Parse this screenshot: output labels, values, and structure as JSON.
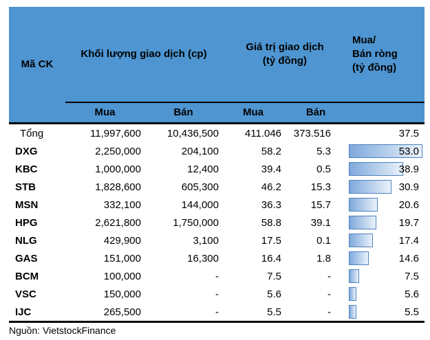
{
  "table": {
    "header": {
      "ticker": "Mã CK",
      "volume_group": "Khối lượng giao dịch (cp)",
      "value_group": "Giá trị giao dịch\n(tỷ đồng)",
      "net_group": "Mua/\nBán ròng\n(tỷ đồng)",
      "sub_volume_buy": "Mua",
      "sub_volume_sell": "Bán",
      "sub_value_buy": "Mua",
      "sub_value_sell": "Bán"
    },
    "net_bar_max": 53.0,
    "total_row": {
      "ticker": "Tổng",
      "volume_buy": "11,997,600",
      "volume_sell": "10,436,500",
      "value_buy": "411.046",
      "value_sell": "373.516",
      "net": "37.5",
      "net_value": 37.5,
      "show_bar": false
    },
    "rows": [
      {
        "ticker": "DXG",
        "volume_buy": "2,250,000",
        "volume_sell": "204,100",
        "value_buy": "58.2",
        "value_sell": "5.3",
        "net": "53.0",
        "net_value": 53.0,
        "show_bar": true
      },
      {
        "ticker": "KBC",
        "volume_buy": "1,000,000",
        "volume_sell": "12,400",
        "value_buy": "39.4",
        "value_sell": "0.5",
        "net": "38.9",
        "net_value": 38.9,
        "show_bar": true
      },
      {
        "ticker": "STB",
        "volume_buy": "1,828,600",
        "volume_sell": "605,300",
        "value_buy": "46.2",
        "value_sell": "15.3",
        "net": "30.9",
        "net_value": 30.9,
        "show_bar": true
      },
      {
        "ticker": "MSN",
        "volume_buy": "332,100",
        "volume_sell": "144,000",
        "value_buy": "36.3",
        "value_sell": "15.7",
        "net": "20.6",
        "net_value": 20.6,
        "show_bar": true
      },
      {
        "ticker": "HPG",
        "volume_buy": "2,621,800",
        "volume_sell": "1,750,000",
        "value_buy": "58.8",
        "value_sell": "39.1",
        "net": "19.7",
        "net_value": 19.7,
        "show_bar": true
      },
      {
        "ticker": "NLG",
        "volume_buy": "429,900",
        "volume_sell": "3,100",
        "value_buy": "17.5",
        "value_sell": "0.1",
        "net": "17.4",
        "net_value": 17.4,
        "show_bar": true
      },
      {
        "ticker": "GAS",
        "volume_buy": "151,000",
        "volume_sell": "16,300",
        "value_buy": "16.4",
        "value_sell": "1.8",
        "net": "14.6",
        "net_value": 14.6,
        "show_bar": true
      },
      {
        "ticker": "BCM",
        "volume_buy": "100,000",
        "volume_sell": "-",
        "value_buy": "7.5",
        "value_sell": "-",
        "net": "7.5",
        "net_value": 7.5,
        "show_bar": true
      },
      {
        "ticker": "VSC",
        "volume_buy": "150,000",
        "volume_sell": "-",
        "value_buy": "5.6",
        "value_sell": "-",
        "net": "5.6",
        "net_value": 5.6,
        "show_bar": true
      },
      {
        "ticker": "IJC",
        "volume_buy": "265,500",
        "volume_sell": "-",
        "value_buy": "5.5",
        "value_sell": "-",
        "net": "5.5",
        "net_value": 5.5,
        "show_bar": true
      }
    ]
  },
  "footer": {
    "source": "Nguồn: VietstockFinance"
  },
  "colors": {
    "header_bg": "#4E95D1",
    "bar_border": "#4F81BD",
    "bar_fill_start": "#7FA8DC",
    "bar_fill_end": "#EAF2FB",
    "text": "#000000"
  },
  "chart_data": {
    "type": "table",
    "title": "",
    "columns": [
      "Mã CK",
      "Khối lượng giao dịch - Mua (cp)",
      "Khối lượng giao dịch - Bán (cp)",
      "Giá trị giao dịch - Mua (tỷ đồng)",
      "Giá trị giao dịch - Bán (tỷ đồng)",
      "Mua/Bán ròng (tỷ đồng)"
    ],
    "rows": [
      [
        "Tổng",
        11997600,
        10436500,
        411.046,
        373.516,
        37.5
      ],
      [
        "DXG",
        2250000,
        204100,
        58.2,
        5.3,
        53.0
      ],
      [
        "KBC",
        1000000,
        12400,
        39.4,
        0.5,
        38.9
      ],
      [
        "STB",
        1828600,
        605300,
        46.2,
        15.3,
        30.9
      ],
      [
        "MSN",
        332100,
        144000,
        36.3,
        15.7,
        20.6
      ],
      [
        "HPG",
        2621800,
        1750000,
        58.8,
        39.1,
        19.7
      ],
      [
        "NLG",
        429900,
        3100,
        17.5,
        0.1,
        17.4
      ],
      [
        "GAS",
        151000,
        16300,
        16.4,
        1.8,
        14.6
      ],
      [
        "BCM",
        100000,
        null,
        7.5,
        null,
        7.5
      ],
      [
        "VSC",
        150000,
        null,
        5.6,
        null,
        5.6
      ],
      [
        "IJC",
        265500,
        null,
        5.5,
        null,
        5.5
      ]
    ],
    "data_bars": {
      "column": "Mua/Bán ròng (tỷ đồng)",
      "min": 0,
      "max": 53.0,
      "applies_to_total": false
    },
    "source": "Nguồn: VietstockFinance"
  }
}
